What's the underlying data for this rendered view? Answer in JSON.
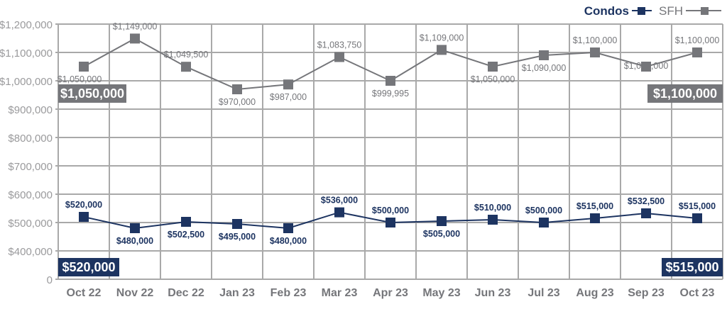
{
  "chart_data": {
    "type": "line",
    "title": "",
    "xlabel": "",
    "ylabel": "",
    "categories": [
      "Oct 22",
      "Nov 22",
      "Dec 22",
      "Jan 23",
      "Feb 23",
      "Mar 23",
      "Apr 23",
      "May 23",
      "Jun 23",
      "Jul 23",
      "Aug 23",
      "Sep 23",
      "Oct 23"
    ],
    "y_ticks": [
      "0",
      "$400,000",
      "$500,000",
      "$600,000",
      "$700,000",
      "$800,000",
      "$900,000",
      "$1,000,000",
      "$1,100,000",
      "$1,200,000"
    ],
    "y_tick_values": [
      0,
      400000,
      500000,
      600000,
      700000,
      800000,
      900000,
      1000000,
      1100000,
      1200000
    ],
    "ylim": [
      0,
      1200000
    ],
    "grid": true,
    "legend_position": "top-right",
    "series": [
      {
        "name": "Condos",
        "color": "#1d3461",
        "marker": "square",
        "values": [
          520000,
          480000,
          502500,
          495000,
          480000,
          536000,
          500000,
          505000,
          510000,
          500000,
          515000,
          532500,
          515000
        ],
        "labels": [
          "$520,000",
          "$480,000",
          "$502,500",
          "$495,000",
          "$480,000",
          "$536,000",
          "$500,000",
          "$505,000",
          "$510,000",
          "$500,000",
          "$515,000",
          "$532,500",
          "$515,000"
        ],
        "start_callout": "$520,000",
        "end_callout": "$515,000"
      },
      {
        "name": "SFH",
        "color": "#75767a",
        "marker": "square",
        "values": [
          1050000,
          1149000,
          1049500,
          970000,
          987000,
          1083750,
          999995,
          1109000,
          1050000,
          1090000,
          1100000,
          1050000,
          1100000
        ],
        "labels": [
          "$1,050,000",
          "$1,149,000",
          "$1,049,500",
          "$970,000",
          "$987,000",
          "$1,083,750",
          "$999,995",
          "$1,109,000",
          "$1,050,000",
          "$1,090,000",
          "$1,100,000",
          "$1,050,000",
          "$1,100,000"
        ],
        "start_callout": "$1,050,000",
        "end_callout": "$1,100,000"
      }
    ]
  }
}
